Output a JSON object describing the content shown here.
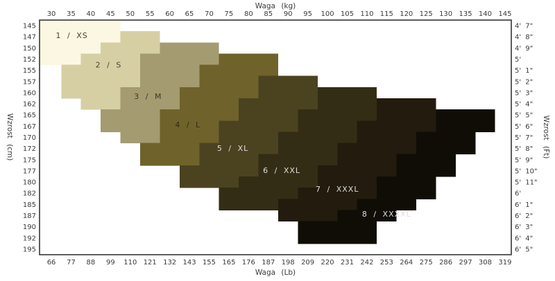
{
  "chart_data": {
    "type": "heatmap",
    "description": "Stepped size-selection chart: clothing size regions by body height and weight",
    "x_axis_top": {
      "label": "Waga (kg)",
      "ticks": [
        30,
        35,
        40,
        45,
        50,
        55,
        60,
        65,
        70,
        75,
        80,
        85,
        90,
        95,
        100,
        105,
        110,
        115,
        120,
        125,
        130,
        135,
        140,
        145
      ]
    },
    "x_axis_bottom": {
      "label": "Waga (Lb)",
      "ticks": [
        66,
        77,
        88,
        99,
        110,
        121,
        132,
        143,
        155,
        165,
        176,
        187,
        198,
        209,
        220,
        231,
        242,
        253,
        264,
        275,
        286,
        297,
        308,
        319
      ]
    },
    "y_axis_left": {
      "label": "Wzrost (cm)"
    },
    "y_axis_right": {
      "label": "Wzrost (Ft)"
    },
    "x_domain_kg": [
      27.0,
      146.6
    ],
    "grid": "off",
    "sizes": {
      "XS": {
        "label": "1 / XS",
        "color": "#FBF7E2",
        "label_color": "#4a4336",
        "anchor": {
          "kg": 35.2,
          "row": 1.35
        }
      },
      "S": {
        "label": "2 / S",
        "color": "#D7CFA4",
        "label_color": "#4a4336",
        "anchor": {
          "kg": 44.5,
          "row": 4.0
        }
      },
      "M": {
        "label": "3 / M",
        "color": "#A59B70",
        "label_color": "#3f392c",
        "anchor": {
          "kg": 54.5,
          "row": 6.8
        }
      },
      "L": {
        "label": "4 / L",
        "color": "#6F632B",
        "label_color": "#2f2a16",
        "anchor": {
          "kg": 64.6,
          "row": 9.35
        }
      },
      "XL": {
        "label": "5 / XL",
        "color": "#4B4220",
        "label_color": "#dcdcdc",
        "anchor": {
          "kg": 76.0,
          "row": 11.45
        }
      },
      "XXL": {
        "label": "6 / XXL",
        "color": "#342D15",
        "label_color": "#dcdcdc",
        "anchor": {
          "kg": 88.4,
          "row": 13.45
        }
      },
      "XXXL": {
        "label": "7 / XXXL",
        "color": "#221B0E",
        "label_color": "#dcdcdc",
        "anchor": {
          "kg": 102.5,
          "row": 15.1
        }
      },
      "XXXXL": {
        "label": "8 / XXXXL",
        "color": "#100D07",
        "label_color": "#dcdcdc",
        "anchor": {
          "kg": 115.0,
          "row": 17.35
        }
      }
    },
    "rows": [
      {
        "cm": "145",
        "ft": "4' 7\"",
        "bands": [
          [
            "XS",
            27,
            47.5
          ]
        ]
      },
      {
        "cm": "147",
        "ft": "4' 8\"",
        "bands": [
          [
            "XS",
            27,
            47.5
          ],
          [
            "S",
            47.5,
            57.5
          ]
        ]
      },
      {
        "cm": "150",
        "ft": "4' 9\"",
        "bands": [
          [
            "XS",
            27,
            42.5
          ],
          [
            "S",
            42.5,
            57.5
          ],
          [
            "M",
            57.5,
            72.5
          ]
        ]
      },
      {
        "cm": "152",
        "ft": "5'",
        "bands": [
          [
            "XS",
            27,
            37.5
          ],
          [
            "S",
            37.5,
            52.5
          ],
          [
            "M",
            52.5,
            72.5
          ],
          [
            "L",
            72.5,
            87.5
          ]
        ]
      },
      {
        "cm": "155",
        "ft": "5' 1\"",
        "bands": [
          [
            "S",
            32.5,
            52.5
          ],
          [
            "M",
            52.5,
            67.5
          ],
          [
            "L",
            67.5,
            87.5
          ]
        ]
      },
      {
        "cm": "157",
        "ft": "5' 2\"",
        "bands": [
          [
            "S",
            32.5,
            52.5
          ],
          [
            "M",
            52.5,
            67.5
          ],
          [
            "L",
            67.5,
            82.5
          ],
          [
            "XL",
            82.5,
            97.5
          ]
        ]
      },
      {
        "cm": "160",
        "ft": "5' 3\"",
        "bands": [
          [
            "S",
            32.5,
            47.5
          ],
          [
            "M",
            47.5,
            62.5
          ],
          [
            "L",
            62.5,
            82.5
          ],
          [
            "XL",
            82.5,
            97.5
          ],
          [
            "XXL",
            97.5,
            112.5
          ]
        ]
      },
      {
        "cm": "162",
        "ft": "5' 4\"",
        "bands": [
          [
            "S",
            37.5,
            47.5
          ],
          [
            "M",
            47.5,
            62.5
          ],
          [
            "L",
            62.5,
            77.5
          ],
          [
            "XL",
            77.5,
            97.5
          ],
          [
            "XXL",
            97.5,
            112.5
          ],
          [
            "XXXL",
            112.5,
            127.5
          ]
        ]
      },
      {
        "cm": "165",
        "ft": "5' 5\"",
        "bands": [
          [
            "M",
            42.5,
            57.5
          ],
          [
            "L",
            57.5,
            77.5
          ],
          [
            "XL",
            77.5,
            92.5
          ],
          [
            "XXL",
            92.5,
            112.5
          ],
          [
            "XXXL",
            112.5,
            127.5
          ],
          [
            "XXXXL",
            127.5,
            142.5
          ]
        ]
      },
      {
        "cm": "167",
        "ft": "5' 6\"",
        "bands": [
          [
            "M",
            42.5,
            57.5
          ],
          [
            "L",
            57.5,
            72.5
          ],
          [
            "XL",
            72.5,
            92.5
          ],
          [
            "XXL",
            92.5,
            107.5
          ],
          [
            "XXXL",
            107.5,
            127.5
          ],
          [
            "XXXXL",
            127.5,
            142.5
          ]
        ]
      },
      {
        "cm": "170",
        "ft": "5' 7\"",
        "bands": [
          [
            "M",
            47.5,
            57.5
          ],
          [
            "L",
            57.5,
            72.5
          ],
          [
            "XL",
            72.5,
            87.5
          ],
          [
            "XXL",
            87.5,
            107.5
          ],
          [
            "XXXL",
            107.5,
            122.5
          ],
          [
            "XXXXL",
            122.5,
            137.5
          ]
        ]
      },
      {
        "cm": "172",
        "ft": "5' 8\"",
        "bands": [
          [
            "L",
            52.5,
            67.5
          ],
          [
            "XL",
            67.5,
            87.5
          ],
          [
            "XXL",
            87.5,
            102.5
          ],
          [
            "XXXL",
            102.5,
            122.5
          ],
          [
            "XXXXL",
            122.5,
            137.5
          ]
        ]
      },
      {
        "cm": "175",
        "ft": "5' 9\"",
        "bands": [
          [
            "L",
            52.5,
            67.5
          ],
          [
            "XL",
            67.5,
            82.5
          ],
          [
            "XXL",
            82.5,
            102.5
          ],
          [
            "XXXL",
            102.5,
            117.5
          ],
          [
            "XXXXL",
            117.5,
            132.5
          ]
        ]
      },
      {
        "cm": "177",
        "ft": "5' 10\"",
        "bands": [
          [
            "XL",
            62.5,
            82.5
          ],
          [
            "XXL",
            82.5,
            97.5
          ],
          [
            "XXXL",
            97.5,
            117.5
          ],
          [
            "XXXXL",
            117.5,
            132.5
          ]
        ]
      },
      {
        "cm": "180",
        "ft": "5' 11\"",
        "bands": [
          [
            "XL",
            62.5,
            77.5
          ],
          [
            "XXL",
            77.5,
            97.5
          ],
          [
            "XXXL",
            97.5,
            112.5
          ],
          [
            "XXXXL",
            112.5,
            127.5
          ]
        ]
      },
      {
        "cm": "182",
        "ft": "6'",
        "bands": [
          [
            "XXL",
            72.5,
            92.5
          ],
          [
            "XXXL",
            92.5,
            112.5
          ],
          [
            "XXXXL",
            112.5,
            127.5
          ]
        ]
      },
      {
        "cm": "185",
        "ft": "6' 1\"",
        "bands": [
          [
            "XXL",
            72.5,
            87.5
          ],
          [
            "XXXL",
            87.5,
            107.5
          ],
          [
            "XXXXL",
            107.5,
            122.5
          ]
        ]
      },
      {
        "cm": "187",
        "ft": "6' 2\"",
        "bands": [
          [
            "XXXL",
            87.5,
            102.5
          ],
          [
            "XXXXL",
            102.5,
            117.5
          ]
        ]
      },
      {
        "cm": "190",
        "ft": "6' 3\"",
        "bands": [
          [
            "XXXXL",
            92.5,
            112.5
          ]
        ]
      },
      {
        "cm": "192",
        "ft": "6' 4\"",
        "bands": [
          [
            "XXXXL",
            92.5,
            112.5
          ]
        ]
      },
      {
        "cm": "195",
        "ft": "6' 5\"",
        "bands": []
      }
    ],
    "colors": {
      "background": "#ffffff",
      "border": "#404040",
      "tick_text": "#3a3a3a"
    }
  }
}
